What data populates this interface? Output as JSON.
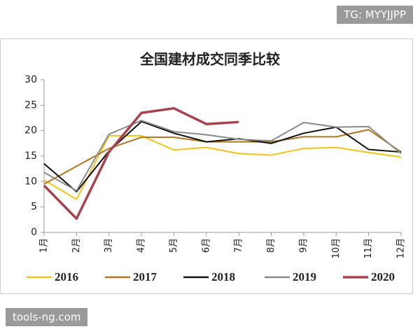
{
  "watermark_top": "TG: MYYJJPP",
  "watermark_bottom": "tools-ng.com",
  "chart_data": {
    "type": "line",
    "title": "全国建材成交同季比较",
    "categories": [
      "1月",
      "2月",
      "3月",
      "4月",
      "5月",
      "6月",
      "7月",
      "8月",
      "9月",
      "10月",
      "11月",
      "12月"
    ],
    "series": [
      {
        "name": "2016",
        "color": "#f2c318",
        "values": [
          10.3,
          6.5,
          19,
          19,
          16.2,
          16.7,
          15.5,
          15.2,
          16.5,
          16.7,
          15.7,
          14.8
        ]
      },
      {
        "name": "2017",
        "color": "#b3741f",
        "values": [
          9.5,
          13,
          16.5,
          18.7,
          18.7,
          17.8,
          17.8,
          17.8,
          18.8,
          18.8,
          20.2,
          15.8
        ]
      },
      {
        "name": "2018",
        "color": "#111111",
        "values": [
          13.5,
          8,
          16,
          21.8,
          19.5,
          17.8,
          18.4,
          17.5,
          19.5,
          20.7,
          16.3,
          15.8
        ]
      },
      {
        "name": "2019",
        "color": "#8a8a8a",
        "values": [
          11.8,
          8.2,
          19.3,
          22,
          19.8,
          19.2,
          18.3,
          18,
          21.6,
          20.7,
          20.8,
          15.5
        ]
      },
      {
        "name": "2020",
        "color": "#a8424c",
        "values": [
          9.2,
          2.7,
          15.8,
          23.5,
          24.4,
          21.3,
          21.7,
          null,
          null,
          null,
          null,
          null
        ]
      }
    ],
    "ylim": [
      0,
      30
    ],
    "yticks": [
      0,
      5,
      10,
      15,
      20,
      25,
      30
    ],
    "grid": false
  }
}
